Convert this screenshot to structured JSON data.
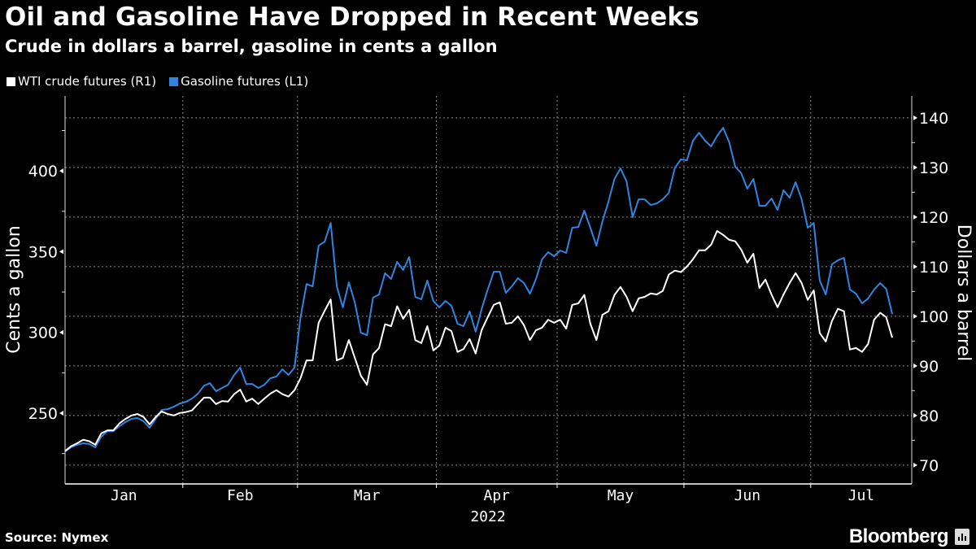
{
  "chart_data": {
    "type": "line",
    "title": "Oil and Gasoline Have Dropped in Recent Weeks",
    "subtitle": "Crude in dollars a barrel, gasoline in cents a gallon",
    "legend": "top-left",
    "grid": true,
    "x": [
      "2022-01-03",
      "2022-01-04",
      "2022-01-05",
      "2022-01-06",
      "2022-01-07",
      "2022-01-10",
      "2022-01-11",
      "2022-01-12",
      "2022-01-13",
      "2022-01-14",
      "2022-01-18",
      "2022-01-19",
      "2022-01-20",
      "2022-01-21",
      "2022-01-24",
      "2022-01-25",
      "2022-01-26",
      "2022-01-27",
      "2022-01-28",
      "2022-01-31",
      "2022-02-01",
      "2022-02-02",
      "2022-02-03",
      "2022-02-04",
      "2022-02-07",
      "2022-02-08",
      "2022-02-09",
      "2022-02-10",
      "2022-02-11",
      "2022-02-14",
      "2022-02-15",
      "2022-02-16",
      "2022-02-17",
      "2022-02-18",
      "2022-02-22",
      "2022-02-23",
      "2022-02-24",
      "2022-02-25",
      "2022-02-28",
      "2022-03-01",
      "2022-03-02",
      "2022-03-03",
      "2022-03-04",
      "2022-03-07",
      "2022-03-08",
      "2022-03-09",
      "2022-03-10",
      "2022-03-11",
      "2022-03-14",
      "2022-03-15",
      "2022-03-16",
      "2022-03-17",
      "2022-03-18",
      "2022-03-21",
      "2022-03-22",
      "2022-03-23",
      "2022-03-24",
      "2022-03-25",
      "2022-03-28",
      "2022-03-29",
      "2022-03-30",
      "2022-03-31",
      "2022-04-01",
      "2022-04-04",
      "2022-04-05",
      "2022-04-06",
      "2022-04-07",
      "2022-04-08",
      "2022-04-11",
      "2022-04-12",
      "2022-04-13",
      "2022-04-14",
      "2022-04-18",
      "2022-04-19",
      "2022-04-20",
      "2022-04-21",
      "2022-04-22",
      "2022-04-25",
      "2022-04-26",
      "2022-04-27",
      "2022-04-28",
      "2022-04-29",
      "2022-05-02",
      "2022-05-03",
      "2022-05-04",
      "2022-05-05",
      "2022-05-06",
      "2022-05-09",
      "2022-05-10",
      "2022-05-11",
      "2022-05-12",
      "2022-05-13",
      "2022-05-16",
      "2022-05-17",
      "2022-05-18",
      "2022-05-19",
      "2022-05-20",
      "2022-05-23",
      "2022-05-24",
      "2022-05-25",
      "2022-05-26",
      "2022-05-27",
      "2022-05-31",
      "2022-06-01",
      "2022-06-02",
      "2022-06-03",
      "2022-06-06",
      "2022-06-07",
      "2022-06-08",
      "2022-06-09",
      "2022-06-10",
      "2022-06-13",
      "2022-06-14",
      "2022-06-15",
      "2022-06-16",
      "2022-06-17",
      "2022-06-21",
      "2022-06-22",
      "2022-06-23",
      "2022-06-24",
      "2022-06-27",
      "2022-06-28",
      "2022-06-29",
      "2022-06-30",
      "2022-07-01",
      "2022-07-05",
      "2022-07-06",
      "2022-07-07",
      "2022-07-08",
      "2022-07-11",
      "2022-07-12",
      "2022-07-13",
      "2022-07-14",
      "2022-07-15",
      "2022-07-18",
      "2022-07-19",
      "2022-07-20",
      "2022-07-21"
    ],
    "x_tick_labels": [
      "Jan",
      "Feb",
      "Mar",
      "Apr",
      "May",
      "Jun",
      "Jul"
    ],
    "x_year_label": "2022",
    "left_axis": {
      "label": "Cents a gallon",
      "ticks": [
        250,
        300,
        350,
        400
      ],
      "minor_ticks": [
        225,
        275,
        325,
        375,
        425
      ],
      "range": [
        206.2,
        446.4
      ]
    },
    "right_axis": {
      "label": "Dollars a barrel",
      "ticks": [
        70,
        80,
        90,
        100,
        110,
        120,
        130,
        140
      ],
      "minor_ticks": [
        75,
        85,
        95,
        105,
        115,
        125,
        135
      ],
      "range": [
        66.2,
        144.4
      ]
    },
    "series": [
      {
        "name": "WTI crude futures (R1)",
        "axis": "right",
        "color": "#ffffff",
        "values": [
          72.8,
          73.8,
          74.4,
          75.1,
          74.8,
          74.1,
          76.4,
          77.0,
          77.0,
          78.4,
          79.3,
          80.0,
          80.3,
          79.7,
          78.2,
          79.7,
          80.8,
          80.3,
          80.0,
          80.5,
          80.7,
          81.0,
          82.3,
          83.6,
          83.6,
          82.3,
          82.9,
          82.8,
          84.3,
          85.2,
          82.8,
          83.4,
          82.3,
          83.4,
          84.4,
          85.1,
          84.3,
          83.8,
          85.1,
          87.5,
          91.1,
          91.1,
          98.7,
          101.1,
          103.4,
          91.1,
          91.6,
          95.2,
          91.6,
          88.0,
          86.2,
          92.3,
          93.6,
          98.4,
          98.0,
          102.0,
          99.5,
          101.3,
          95.2,
          94.6,
          98.0,
          93.1,
          94.1,
          97.7,
          97.0,
          92.8,
          93.4,
          95.4,
          92.5,
          97.2,
          99.8,
          102.3,
          102.8,
          98.5,
          98.7,
          100.0,
          98.2,
          95.2,
          97.2,
          97.7,
          99.3,
          98.7,
          99.3,
          97.5,
          102.3,
          102.6,
          104.3,
          98.5,
          95.2,
          100.3,
          101.0,
          104.3,
          105.9,
          103.9,
          101.0,
          103.6,
          103.9,
          104.6,
          104.4,
          105.1,
          108.4,
          109.2,
          108.9,
          110.0,
          111.5,
          113.3,
          113.3,
          114.4,
          117.2,
          116.4,
          115.4,
          115.1,
          113.4,
          110.8,
          112.6,
          105.7,
          107.4,
          104.4,
          101.8,
          104.4,
          106.7,
          108.7,
          106.7,
          103.3,
          105.2,
          96.6,
          94.9,
          99.0,
          101.5,
          101.0,
          93.3,
          93.6,
          92.8,
          94.4,
          99.3,
          100.7,
          99.8,
          95.7
        ]
      },
      {
        "name": "Gasoline futures (L1)",
        "axis": "left",
        "color": "#2f85e0",
        "values": [
          226.3,
          228.9,
          230.4,
          231.4,
          230.9,
          228.9,
          235.4,
          238.9,
          238.9,
          242.0,
          244.5,
          246.5,
          247.0,
          245.0,
          241.0,
          246.5,
          252.0,
          252.5,
          254.0,
          256.0,
          257.0,
          259.0,
          262.0,
          267.0,
          268.6,
          263.6,
          265.6,
          267.6,
          273.7,
          278.2,
          268.1,
          268.1,
          265.6,
          267.6,
          271.6,
          272.7,
          277.2,
          273.7,
          278.2,
          309.4,
          330.0,
          328.5,
          353.7,
          356.2,
          367.8,
          328.5,
          315.5,
          331.0,
          318.5,
          299.8,
          298.3,
          321.5,
          323.5,
          336.6,
          333.1,
          343.7,
          338.6,
          346.7,
          322.0,
          320.5,
          332.1,
          319.5,
          315.5,
          319.5,
          316.5,
          305.4,
          303.9,
          313.0,
          300.4,
          314.5,
          326.5,
          337.6,
          337.6,
          324.5,
          328.5,
          333.6,
          330.6,
          324.0,
          333.1,
          345.2,
          349.7,
          347.2,
          350.7,
          349.2,
          364.8,
          365.3,
          375.4,
          364.8,
          353.7,
          368.8,
          381.0,
          395.0,
          401.6,
          393.5,
          371.3,
          382.4,
          382.4,
          378.9,
          379.9,
          382.4,
          386.5,
          402.0,
          407.1,
          406.6,
          418.7,
          423.7,
          418.7,
          415.2,
          421.7,
          426.7,
          417.7,
          402.6,
          398.5,
          389.0,
          395.0,
          378.4,
          378.4,
          382.9,
          375.9,
          388.0,
          383.4,
          393.0,
          382.4,
          364.8,
          367.8,
          332.1,
          323.5,
          342.1,
          344.7,
          346.2,
          326.5,
          324.0,
          318.0,
          321.0,
          326.5,
          330.6,
          327.0,
          311.4
        ]
      }
    ],
    "source": "Source: Nymex"
  },
  "branding": {
    "logo_text": "Bloomberg"
  }
}
